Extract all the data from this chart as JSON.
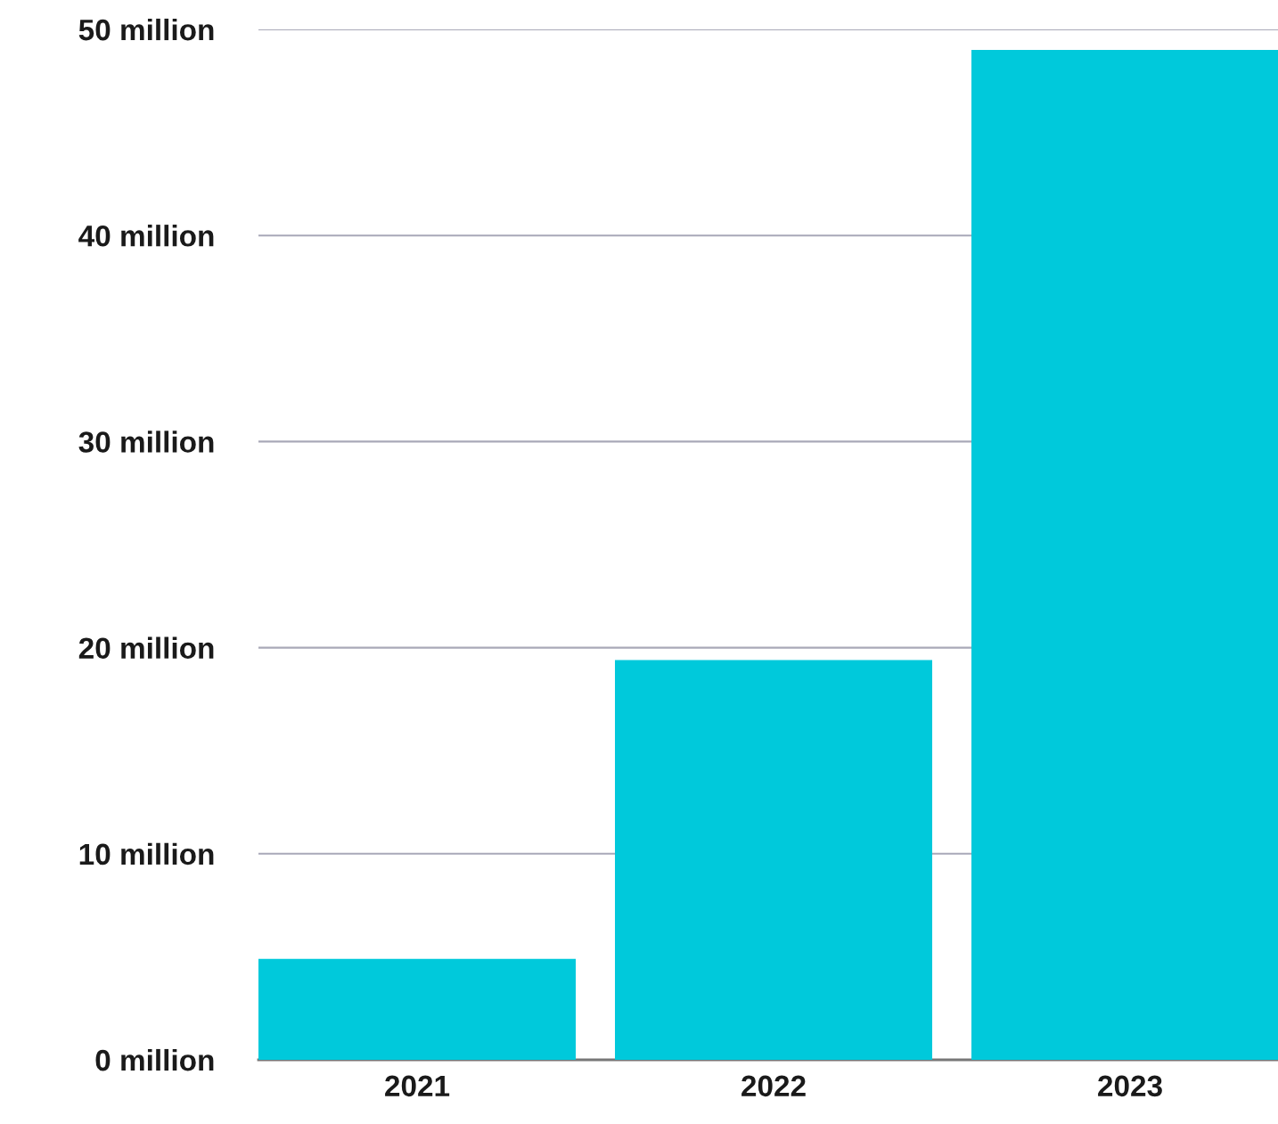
{
  "chart_data": {
    "type": "bar",
    "categories": [
      "2021",
      "2022",
      "2023"
    ],
    "values": [
      4.9,
      19.4,
      49
    ],
    "color": "#00c9db",
    "ylim": [
      0,
      50
    ],
    "yticks": [
      {
        "value": 0,
        "label": "0 million"
      },
      {
        "value": 10,
        "label": "10 million"
      },
      {
        "value": 20,
        "label": "20 million"
      },
      {
        "value": 30,
        "label": "30 million"
      },
      {
        "value": 40,
        "label": "40 million"
      },
      {
        "value": 50,
        "label": "50 million"
      }
    ],
    "grid": "y"
  }
}
